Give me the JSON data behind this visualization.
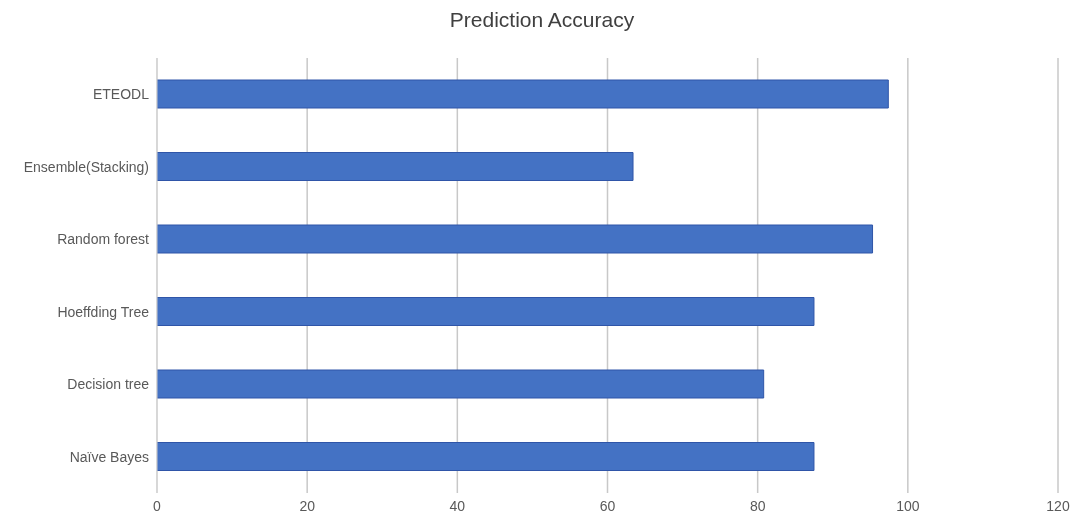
{
  "chart_data": {
    "type": "bar",
    "orientation": "horizontal",
    "title": "Prediction Accuracy",
    "categories": [
      "ETEODL",
      "Ensemble(Stacking)",
      "Random forest",
      "Hoeffding Tree",
      "Decision tree",
      "Naïve Bayes"
    ],
    "values": [
      97.4,
      63.4,
      95.3,
      87.5,
      80.8,
      87.5
    ],
    "color": "#4472c4",
    "xlim": [
      0,
      120
    ],
    "xticks": [
      0,
      20,
      40,
      60,
      80,
      100,
      120
    ],
    "grid": "x",
    "legend": false
  }
}
